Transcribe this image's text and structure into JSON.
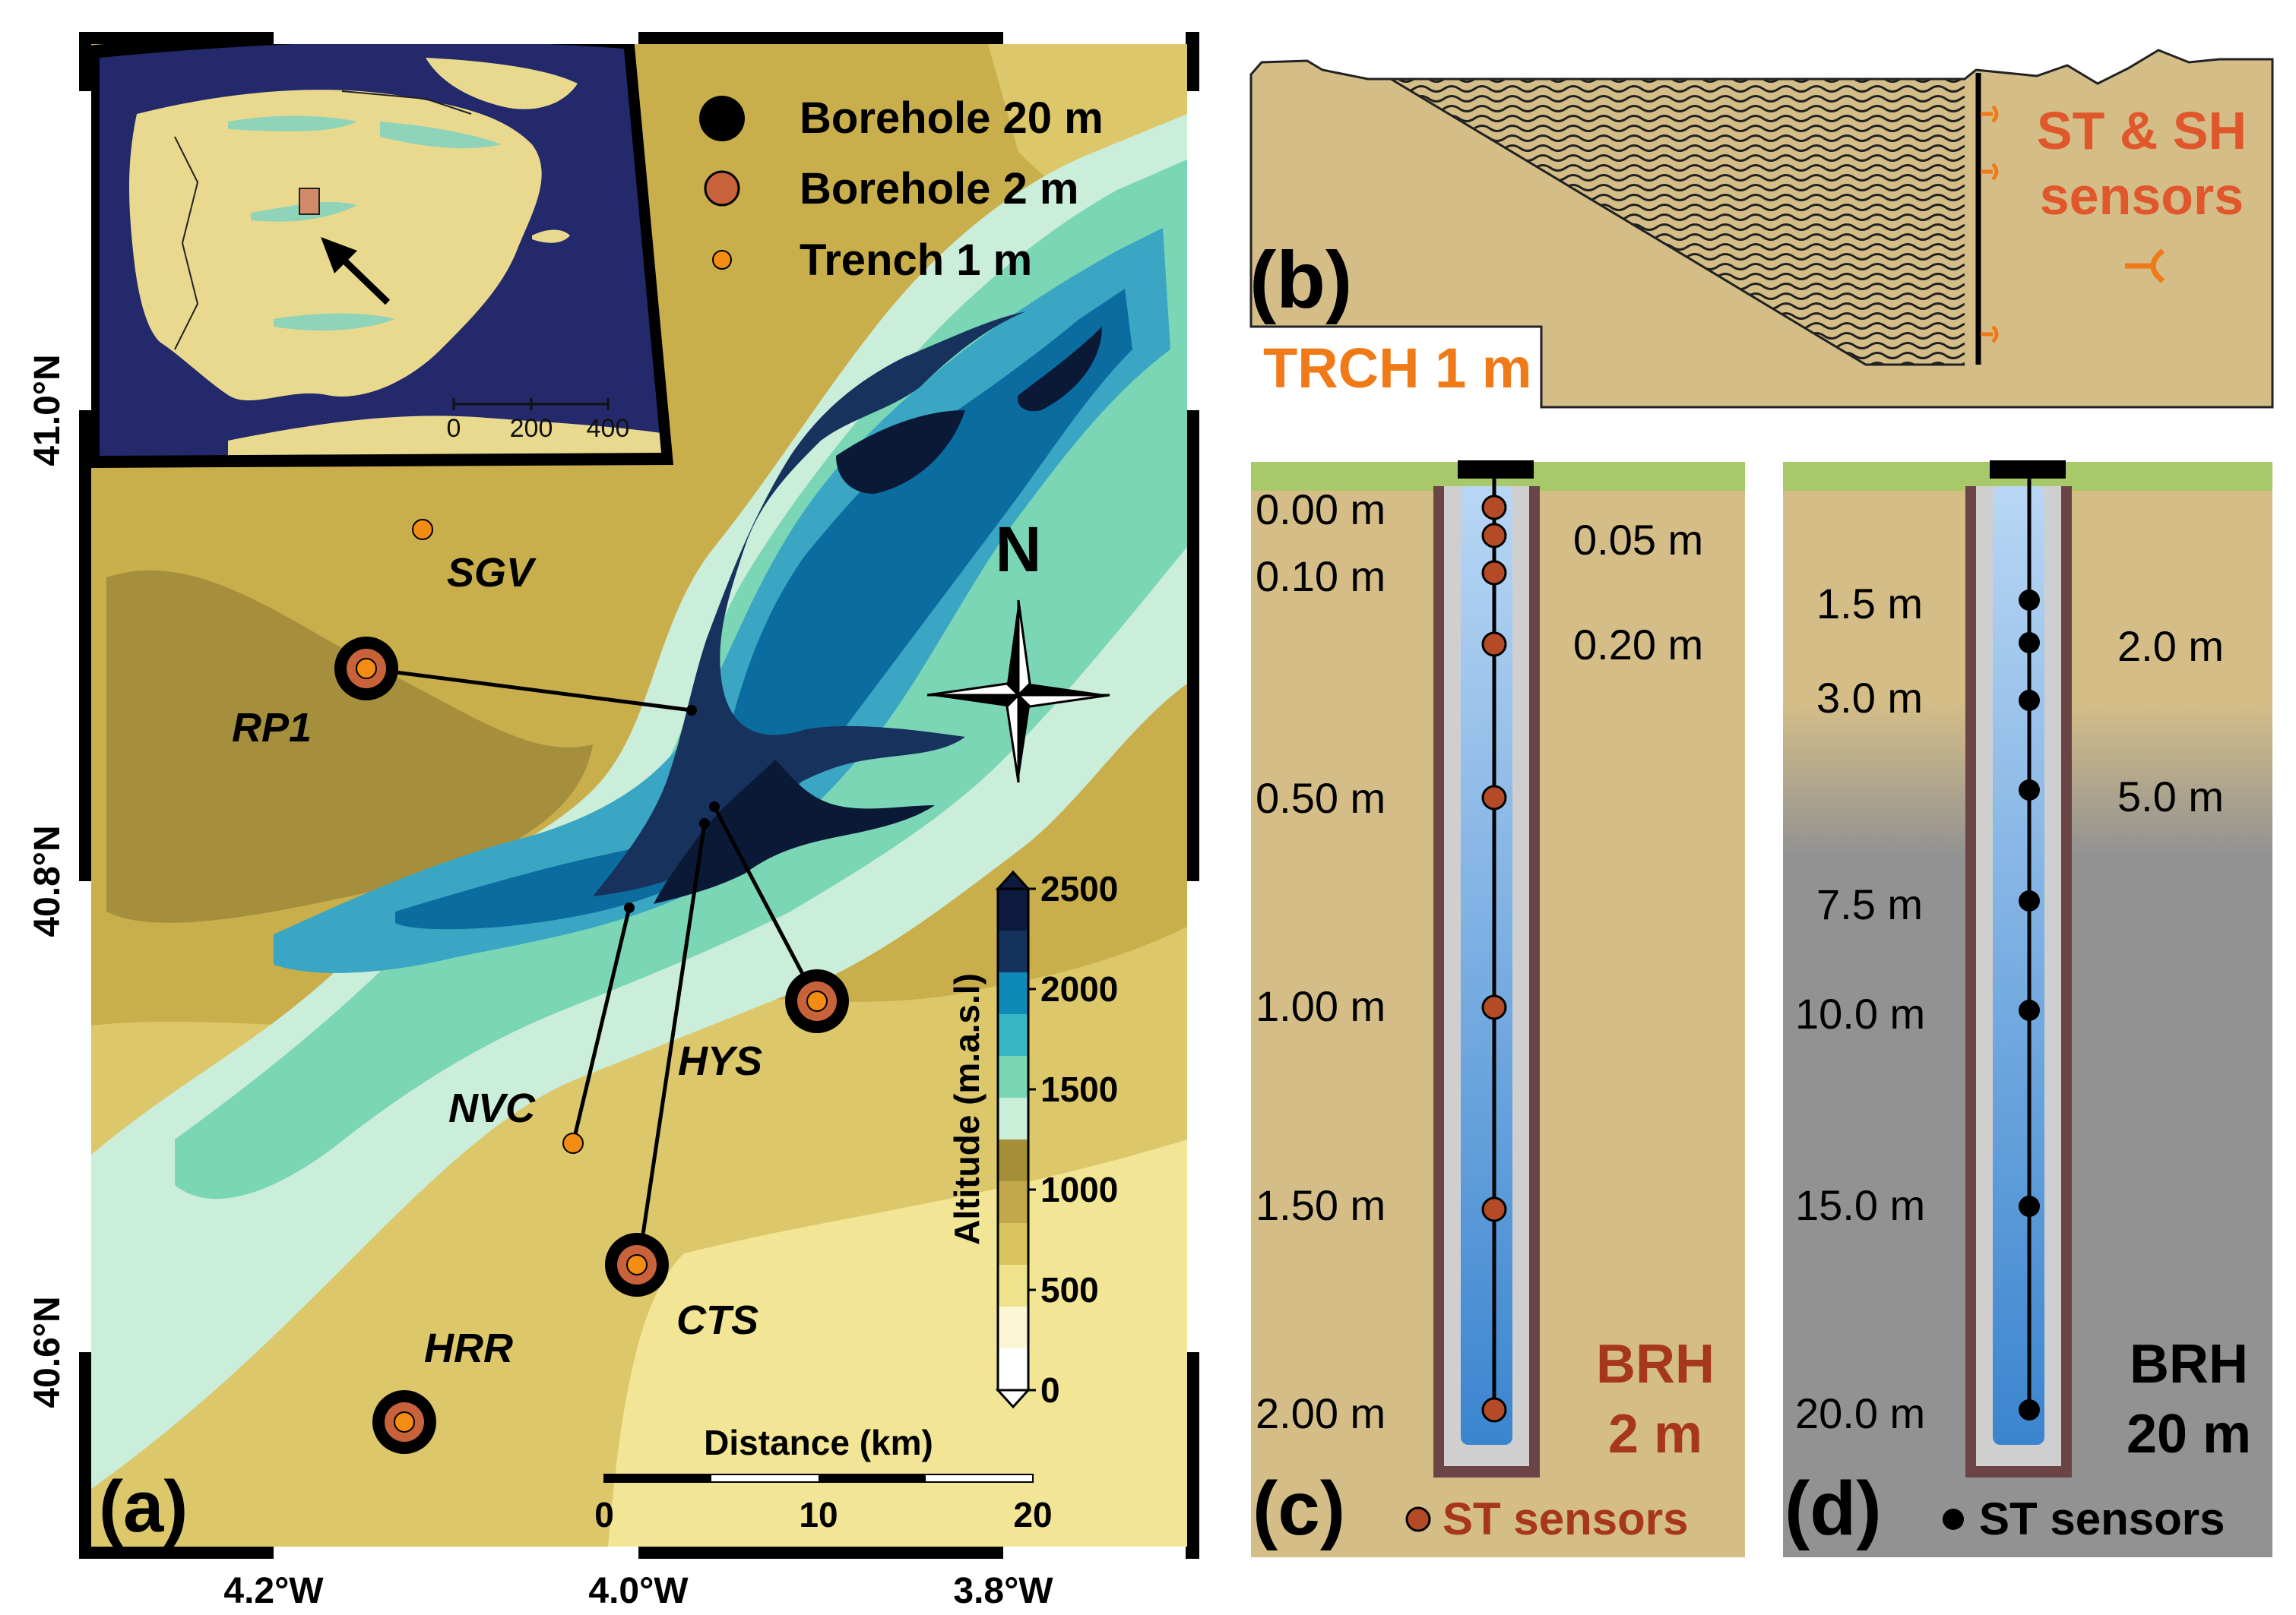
{
  "panel_a": {
    "label": "(a)",
    "lat_labels": [
      "41.0°N",
      "40.8°N",
      "40.6°N"
    ],
    "lon_labels": [
      "4.2°W",
      "4.0°W",
      "3.8°W"
    ],
    "north_label": "N",
    "legend": {
      "items": [
        {
          "label": "Borehole 20 m",
          "symbol": "borehole-20m"
        },
        {
          "label": "Borehole 2 m",
          "symbol": "borehole-2m"
        },
        {
          "label": "Trench 1 m",
          "symbol": "trench-1m"
        }
      ]
    },
    "inset": {
      "scale_ticks": [
        "0",
        "200",
        "400"
      ]
    },
    "sites": [
      {
        "name": "SGV",
        "type": "trench"
      },
      {
        "name": "RP1",
        "type": "borehole20"
      },
      {
        "name": "NVC",
        "type": "trench"
      },
      {
        "name": "HYS",
        "type": "borehole20"
      },
      {
        "name": "CTS",
        "type": "borehole20"
      },
      {
        "name": "HRR",
        "type": "borehole20"
      }
    ],
    "colorbar": {
      "title": "Altitude (m.a.s.l)",
      "ticks": [
        "2500",
        "2000",
        "1500",
        "1000",
        "500",
        "0"
      ],
      "colors": [
        "#0b1a3d",
        "#15325e",
        "#0f8ab8",
        "#39b6c6",
        "#7ad6b4",
        "#c9efd9",
        "#a58e3a",
        "#c2a84a",
        "#d8c55e",
        "#f0e28c",
        "#fbf7d6",
        "#ffffff"
      ]
    },
    "scalebar": {
      "title": "Distance (km)",
      "ticks": [
        "0",
        "10",
        "20"
      ]
    }
  },
  "panel_b": {
    "label": "(b)",
    "site_label": "TRCH 1 m",
    "sensors_label_line1": "ST & SH",
    "sensors_label_line2": "sensors"
  },
  "panel_c": {
    "label": "(c)",
    "title_line1": "BRH",
    "title_line2": "2 m",
    "legend": "ST sensors",
    "depths_left": [
      "0.00 m",
      "0.10 m",
      "0.50 m",
      "1.00 m",
      "1.50 m",
      "2.00 m"
    ],
    "depths_right": [
      "0.05 m",
      "0.20 m"
    ]
  },
  "panel_d": {
    "label": "(d)",
    "title_line1": "BRH",
    "title_line2": "20 m",
    "legend": "ST sensors",
    "depths_left": [
      "1.5 m",
      "3.0 m",
      "7.5 m",
      "10.0 m",
      "15.0 m",
      "20.0 m"
    ],
    "depths_right": [
      "2.0 m",
      "5.0 m"
    ]
  },
  "colors": {
    "frame": "#000000",
    "sea": "#242a66",
    "soil": "#d4bd87",
    "grass": "#a7c96a",
    "gray": "#919191",
    "casing": "#6b4545",
    "sensor_brown": "#b54a26",
    "trench_orange": "#f28c12",
    "text_orange": "#f07a17",
    "text_brown": "#a6371d"
  }
}
